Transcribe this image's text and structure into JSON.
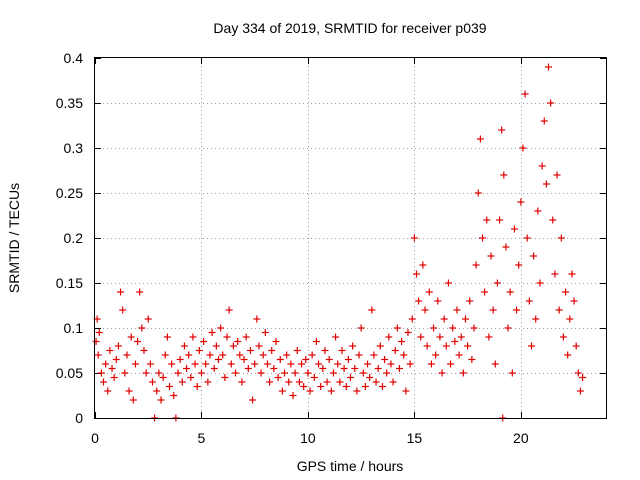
{
  "chart_data": {
    "type": "scatter",
    "title": "Day 334 of 2019, SRMTID for receiver p039",
    "xlabel": "GPS time / hours",
    "ylabel": "SRMTID / TECUs",
    "xlim": [
      0,
      24
    ],
    "ylim": [
      0,
      0.4
    ],
    "xticks": [
      0,
      5,
      10,
      15,
      20
    ],
    "xtick_labels": [
      "0",
      "5",
      "10",
      "15",
      "20"
    ],
    "yticks": [
      0,
      0.05,
      0.1,
      0.15,
      0.2,
      0.25,
      0.3,
      0.35,
      0.4
    ],
    "ytick_labels": [
      "0",
      "0.05",
      "0.1",
      "0.15",
      "0.2",
      "0.25",
      "0.3",
      "0.35",
      "0.4"
    ],
    "grid": true,
    "marker": "+",
    "marker_color": "#e00000",
    "series": [
      {
        "name": "SRMTID",
        "points": [
          [
            0.05,
            0.085
          ],
          [
            0.1,
            0.11
          ],
          [
            0.15,
            0.07
          ],
          [
            0.2,
            0.095
          ],
          [
            0.3,
            0.05
          ],
          [
            0.4,
            0.04
          ],
          [
            0.5,
            0.06
          ],
          [
            0.6,
            0.03
          ],
          [
            0.7,
            0.075
          ],
          [
            0.8,
            0.055
          ],
          [
            0.9,
            0.045
          ],
          [
            1.0,
            0.065
          ],
          [
            1.1,
            0.08
          ],
          [
            1.2,
            0.14
          ],
          [
            1.3,
            0.12
          ],
          [
            1.4,
            0.05
          ],
          [
            1.5,
            0.07
          ],
          [
            1.6,
            0.03
          ],
          [
            1.7,
            0.09
          ],
          [
            1.8,
            0.02
          ],
          [
            1.9,
            0.06
          ],
          [
            2.0,
            0.085
          ],
          [
            2.1,
            0.14
          ],
          [
            2.2,
            0.1
          ],
          [
            2.3,
            0.075
          ],
          [
            2.4,
            0.05
          ],
          [
            2.5,
            0.11
          ],
          [
            2.6,
            0.06
          ],
          [
            2.7,
            0.04
          ],
          [
            2.8,
            0.0
          ],
          [
            2.9,
            0.03
          ],
          [
            3.0,
            0.05
          ],
          [
            3.1,
            0.02
          ],
          [
            3.2,
            0.045
          ],
          [
            3.3,
            0.07
          ],
          [
            3.4,
            0.09
          ],
          [
            3.5,
            0.035
          ],
          [
            3.6,
            0.06
          ],
          [
            3.7,
            0.025
          ],
          [
            3.8,
            0.0
          ],
          [
            3.9,
            0.05
          ],
          [
            4.0,
            0.065
          ],
          [
            4.1,
            0.04
          ],
          [
            4.2,
            0.08
          ],
          [
            4.3,
            0.055
          ],
          [
            4.4,
            0.07
          ],
          [
            4.5,
            0.045
          ],
          [
            4.6,
            0.09
          ],
          [
            4.7,
            0.06
          ],
          [
            4.8,
            0.035
          ],
          [
            4.9,
            0.075
          ],
          [
            5.0,
            0.05
          ],
          [
            5.1,
            0.085
          ],
          [
            5.2,
            0.06
          ],
          [
            5.3,
            0.04
          ],
          [
            5.4,
            0.07
          ],
          [
            5.5,
            0.095
          ],
          [
            5.6,
            0.055
          ],
          [
            5.7,
            0.08
          ],
          [
            5.8,
            0.065
          ],
          [
            5.9,
            0.1
          ],
          [
            6.0,
            0.07
          ],
          [
            6.1,
            0.045
          ],
          [
            6.2,
            0.09
          ],
          [
            6.3,
            0.12
          ],
          [
            6.4,
            0.06
          ],
          [
            6.5,
            0.08
          ],
          [
            6.6,
            0.05
          ],
          [
            6.7,
            0.085
          ],
          [
            6.8,
            0.07
          ],
          [
            6.9,
            0.04
          ],
          [
            7.0,
            0.065
          ],
          [
            7.1,
            0.09
          ],
          [
            7.2,
            0.055
          ],
          [
            7.3,
            0.075
          ],
          [
            7.4,
            0.02
          ],
          [
            7.5,
            0.06
          ],
          [
            7.6,
            0.11
          ],
          [
            7.7,
            0.08
          ],
          [
            7.8,
            0.05
          ],
          [
            7.9,
            0.07
          ],
          [
            8.0,
            0.095
          ],
          [
            8.1,
            0.06
          ],
          [
            8.2,
            0.04
          ],
          [
            8.3,
            0.075
          ],
          [
            8.4,
            0.055
          ],
          [
            8.5,
            0.085
          ],
          [
            8.6,
            0.045
          ],
          [
            8.7,
            0.065
          ],
          [
            8.8,
            0.03
          ],
          [
            8.9,
            0.05
          ],
          [
            9.0,
            0.07
          ],
          [
            9.1,
            0.04
          ],
          [
            9.2,
            0.06
          ],
          [
            9.3,
            0.025
          ],
          [
            9.4,
            0.05
          ],
          [
            9.5,
            0.075
          ],
          [
            9.6,
            0.04
          ],
          [
            9.7,
            0.06
          ],
          [
            9.8,
            0.035
          ],
          [
            9.9,
            0.065
          ],
          [
            10.0,
            0.05
          ],
          [
            10.1,
            0.03
          ],
          [
            10.2,
            0.07
          ],
          [
            10.3,
            0.045
          ],
          [
            10.4,
            0.085
          ],
          [
            10.5,
            0.06
          ],
          [
            10.6,
            0.035
          ],
          [
            10.7,
            0.055
          ],
          [
            10.8,
            0.075
          ],
          [
            10.9,
            0.04
          ],
          [
            11.0,
            0.065
          ],
          [
            11.1,
            0.03
          ],
          [
            11.2,
            0.05
          ],
          [
            11.3,
            0.09
          ],
          [
            11.4,
            0.06
          ],
          [
            11.5,
            0.04
          ],
          [
            11.6,
            0.075
          ],
          [
            11.7,
            0.055
          ],
          [
            11.8,
            0.035
          ],
          [
            11.9,
            0.065
          ],
          [
            12.0,
            0.045
          ],
          [
            12.1,
            0.08
          ],
          [
            12.2,
            0.055
          ],
          [
            12.3,
            0.03
          ],
          [
            12.4,
            0.07
          ],
          [
            12.5,
            0.1
          ],
          [
            12.6,
            0.05
          ],
          [
            12.7,
            0.035
          ],
          [
            12.8,
            0.06
          ],
          [
            12.9,
            0.045
          ],
          [
            13.0,
            0.12
          ],
          [
            13.1,
            0.07
          ],
          [
            13.2,
            0.04
          ],
          [
            13.3,
            0.055
          ],
          [
            13.4,
            0.08
          ],
          [
            13.5,
            0.035
          ],
          [
            13.6,
            0.065
          ],
          [
            13.7,
            0.05
          ],
          [
            13.8,
            0.09
          ],
          [
            13.9,
            0.06
          ],
          [
            14.0,
            0.04
          ],
          [
            14.1,
            0.075
          ],
          [
            14.2,
            0.1
          ],
          [
            14.3,
            0.055
          ],
          [
            14.4,
            0.085
          ],
          [
            14.5,
            0.07
          ],
          [
            14.6,
            0.03
          ],
          [
            14.7,
            0.095
          ],
          [
            14.8,
            0.06
          ],
          [
            14.9,
            0.11
          ],
          [
            15.0,
            0.2
          ],
          [
            15.1,
            0.16
          ],
          [
            15.2,
            0.13
          ],
          [
            15.3,
            0.09
          ],
          [
            15.4,
            0.17
          ],
          [
            15.5,
            0.12
          ],
          [
            15.6,
            0.08
          ],
          [
            15.7,
            0.14
          ],
          [
            15.8,
            0.06
          ],
          [
            15.9,
            0.1
          ],
          [
            16.0,
            0.07
          ],
          [
            16.1,
            0.13
          ],
          [
            16.2,
            0.09
          ],
          [
            16.3,
            0.05
          ],
          [
            16.4,
            0.11
          ],
          [
            16.5,
            0.08
          ],
          [
            16.6,
            0.15
          ],
          [
            16.7,
            0.06
          ],
          [
            16.8,
            0.1
          ],
          [
            16.9,
            0.085
          ],
          [
            17.0,
            0.12
          ],
          [
            17.1,
            0.07
          ],
          [
            17.2,
            0.09
          ],
          [
            17.3,
            0.05
          ],
          [
            17.4,
            0.11
          ],
          [
            17.5,
            0.08
          ],
          [
            17.6,
            0.13
          ],
          [
            17.7,
            0.065
          ],
          [
            17.8,
            0.1
          ],
          [
            17.9,
            0.17
          ],
          [
            18.0,
            0.25
          ],
          [
            18.1,
            0.31
          ],
          [
            18.2,
            0.2
          ],
          [
            18.3,
            0.14
          ],
          [
            18.4,
            0.22
          ],
          [
            18.5,
            0.09
          ],
          [
            18.6,
            0.18
          ],
          [
            18.7,
            0.12
          ],
          [
            18.8,
            0.06
          ],
          [
            18.9,
            0.15
          ],
          [
            19.0,
            0.22
          ],
          [
            19.1,
            0.32
          ],
          [
            19.15,
            0.0
          ],
          [
            19.2,
            0.27
          ],
          [
            19.3,
            0.19
          ],
          [
            19.4,
            0.1
          ],
          [
            19.5,
            0.14
          ],
          [
            19.6,
            0.05
          ],
          [
            19.7,
            0.21
          ],
          [
            19.8,
            0.12
          ],
          [
            19.9,
            0.17
          ],
          [
            20.0,
            0.24
          ],
          [
            20.1,
            0.3
          ],
          [
            20.2,
            0.36
          ],
          [
            20.3,
            0.2
          ],
          [
            20.4,
            0.13
          ],
          [
            20.5,
            0.08
          ],
          [
            20.6,
            0.18
          ],
          [
            20.7,
            0.11
          ],
          [
            20.8,
            0.23
          ],
          [
            20.9,
            0.15
          ],
          [
            21.0,
            0.28
          ],
          [
            21.1,
            0.33
          ],
          [
            21.2,
            0.26
          ],
          [
            21.3,
            0.39
          ],
          [
            21.4,
            0.35
          ],
          [
            21.5,
            0.22
          ],
          [
            21.6,
            0.16
          ],
          [
            21.7,
            0.27
          ],
          [
            21.8,
            0.12
          ],
          [
            21.9,
            0.2
          ],
          [
            22.0,
            0.09
          ],
          [
            22.1,
            0.14
          ],
          [
            22.2,
            0.07
          ],
          [
            22.3,
            0.11
          ],
          [
            22.4,
            0.16
          ],
          [
            22.5,
            0.13
          ],
          [
            22.6,
            0.08
          ],
          [
            22.7,
            0.05
          ],
          [
            22.8,
            0.03
          ],
          [
            22.9,
            0.045
          ]
        ]
      }
    ]
  }
}
